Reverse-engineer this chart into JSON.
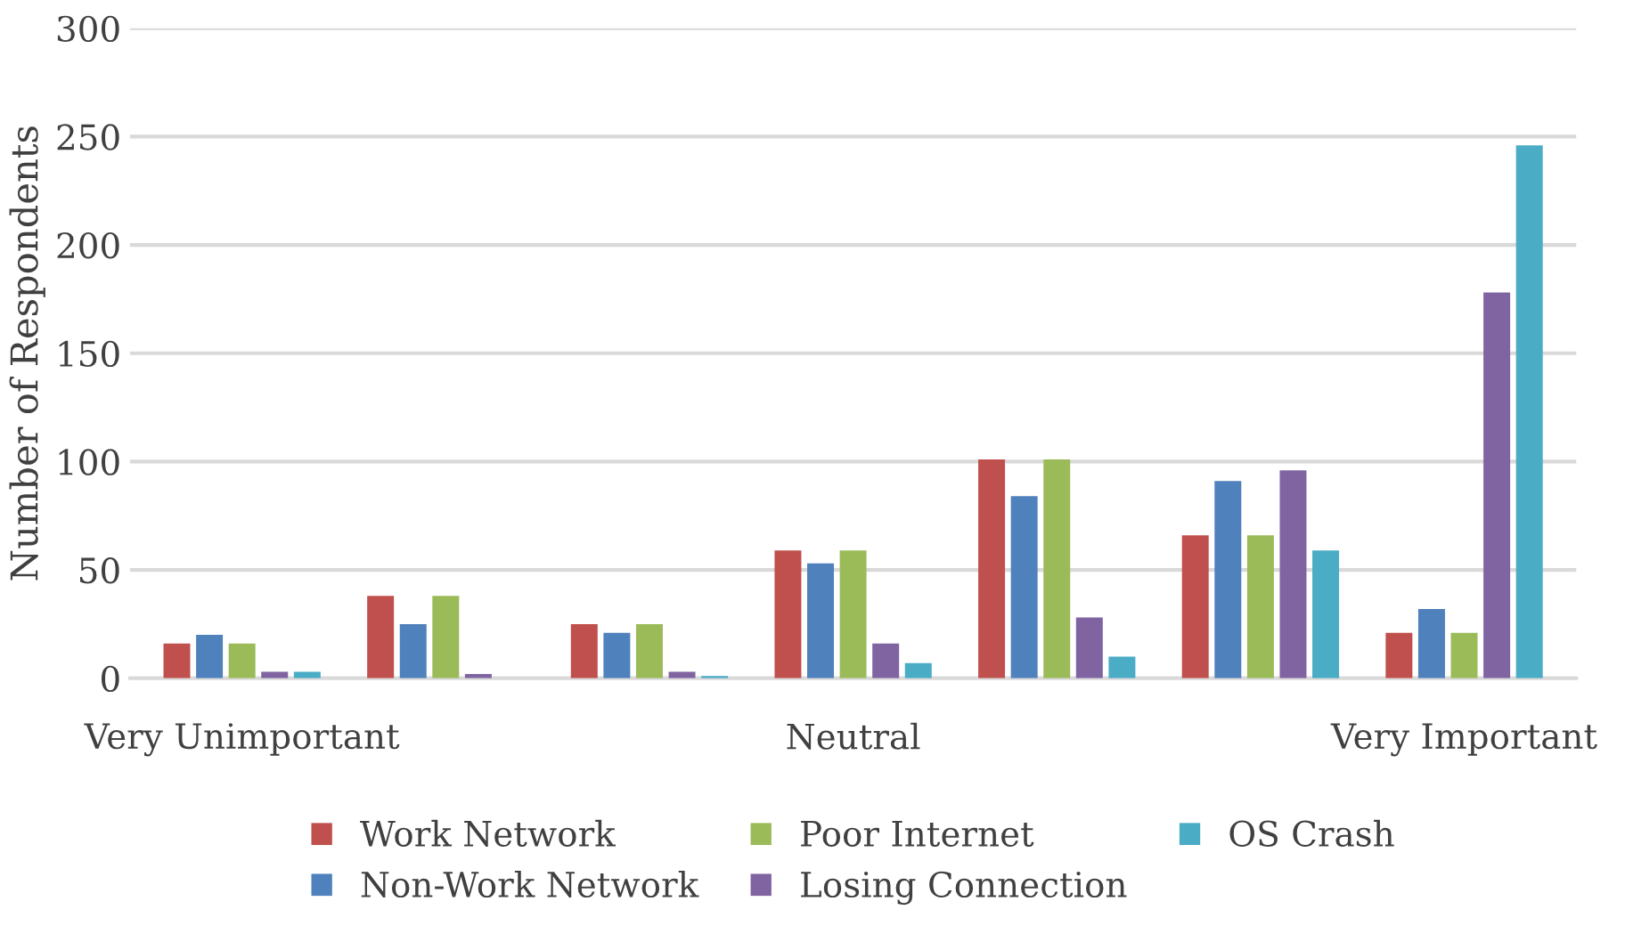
{
  "chart_data": {
    "type": "bar",
    "ylabel": "Number of Respondents",
    "categories": [
      "Very Unimportant",
      null,
      null,
      "Neutral",
      null,
      null,
      "Very Important"
    ],
    "series": [
      {
        "name": "Work Network",
        "color": "#c0504d",
        "values": [
          16,
          38,
          25,
          59,
          101,
          66,
          21
        ]
      },
      {
        "name": "Non-Work Network",
        "color": "#4f81bd",
        "values": [
          20,
          25,
          21,
          53,
          84,
          91,
          32
        ]
      },
      {
        "name": "Poor Internet",
        "color": "#9bbb59",
        "values": [
          16,
          38,
          25,
          59,
          101,
          66,
          21
        ]
      },
      {
        "name": "Losing Connection",
        "color": "#8064a2",
        "values": [
          3,
          2,
          3,
          16,
          28,
          96,
          178
        ]
      },
      {
        "name": "OS Crash",
        "color": "#4bacc6",
        "values": [
          3,
          0,
          1,
          7,
          10,
          59,
          246
        ]
      }
    ],
    "ylim": [
      0,
      300
    ],
    "yticks": [
      0,
      50,
      100,
      150,
      200,
      250,
      300
    ],
    "grid": "y",
    "legend": "bottom"
  }
}
